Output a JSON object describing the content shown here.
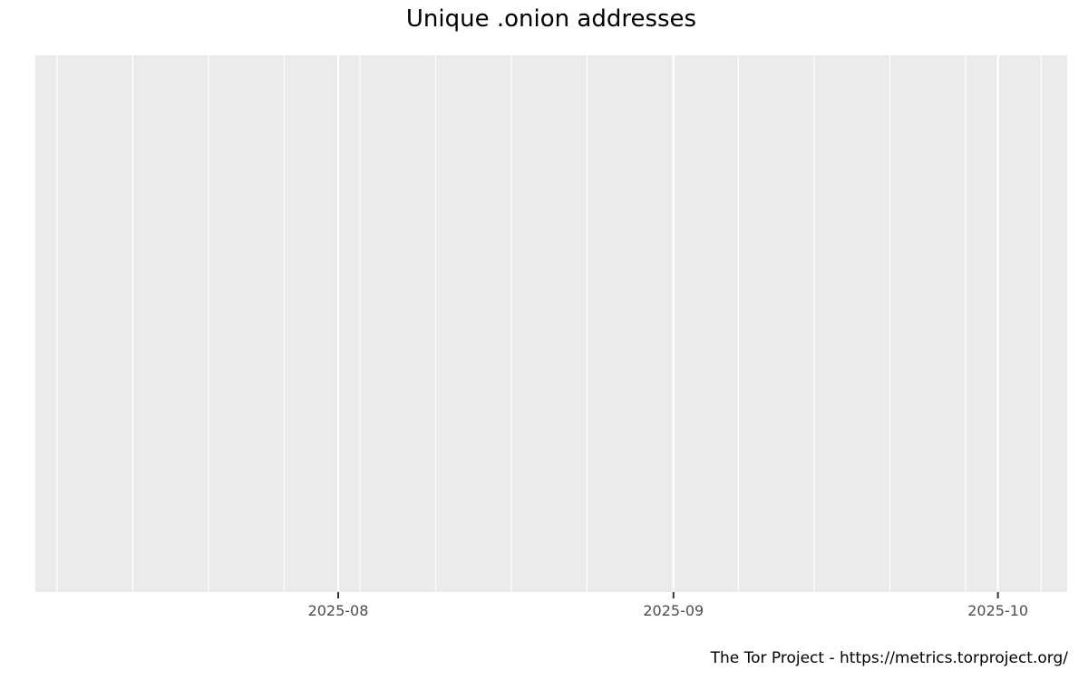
{
  "chart_data": {
    "type": "line",
    "title": "Unique .onion addresses",
    "xlabel": "",
    "ylabel": "",
    "x_type": "date",
    "xlim": [
      "2025-07-04",
      "2025-10-07"
    ],
    "x_ticks": [
      "2025-08-01",
      "2025-09-01",
      "2025-10-01"
    ],
    "x_tick_labels": [
      "2025-08",
      "2025-09",
      "2025-10"
    ],
    "x_minor_grid": [
      "2025-07-06",
      "2025-07-13",
      "2025-07-20",
      "2025-07-27",
      "2025-08-03",
      "2025-08-10",
      "2025-08-17",
      "2025-08-24",
      "2025-09-07",
      "2025-09-14",
      "2025-09-21",
      "2025-09-28",
      "2025-10-05"
    ],
    "y_ticks": [],
    "series": [],
    "grid": true,
    "legend": "none",
    "colors": {
      "panel": "#ebebeb",
      "grid": "#ffffff",
      "tick_text": "#4d4d4d"
    }
  },
  "caption": "The Tor Project - https://metrics.torproject.org/"
}
